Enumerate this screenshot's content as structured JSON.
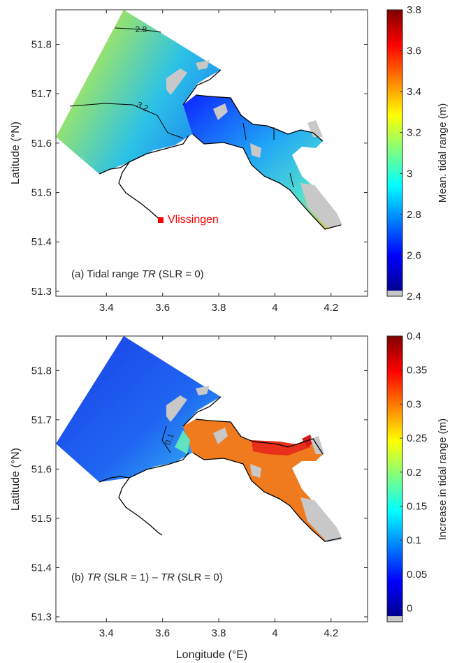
{
  "chart_data": [
    {
      "type": "heatmap",
      "panel_label": {
        "prefix": "(a) Tidal range ",
        "italic": "TR",
        "suffix": " (SLR = 0)"
      },
      "ylabel": "Latitude (°N)",
      "xlabel": "",
      "xlim": [
        3.22,
        4.33
      ],
      "ylim": [
        51.29,
        51.87
      ],
      "xticks": [
        "3.4",
        "3.6",
        "3.8",
        "4",
        "4.2"
      ],
      "yticks": [
        "51.3",
        "51.4",
        "51.5",
        "51.6",
        "51.7",
        "51.8"
      ],
      "colorbar": {
        "label": "Mean. tidal range (m)",
        "range": [
          2.4,
          3.8
        ],
        "ticks": [
          "2.4",
          "2.6",
          "2.8",
          "3",
          "3.2",
          "3.4",
          "3.6",
          "3.8"
        ]
      },
      "contours": [
        {
          "label": "2.8"
        },
        {
          "label": "3.2"
        }
      ],
      "annotation": {
        "label": "Vlissingen",
        "lon": 3.58,
        "lat": 51.45,
        "color": "#ff0000"
      }
    },
    {
      "type": "heatmap",
      "panel_label": {
        "part1": "(b) ",
        "italic1": "TR",
        "mid": " (SLR = 1) – ",
        "italic2": "TR",
        "suffix": " (SLR = 0)"
      },
      "ylabel": "Latitude (°N)",
      "xlabel": "Longitude (°E)",
      "xlim": [
        3.22,
        4.33
      ],
      "ylim": [
        51.29,
        51.87
      ],
      "xticks": [
        "3.4",
        "3.6",
        "3.8",
        "4",
        "4.2"
      ],
      "yticks": [
        "51.3",
        "51.4",
        "51.5",
        "51.6",
        "51.7",
        "51.8"
      ],
      "colorbar": {
        "label": "Increase in tidal range (m)",
        "range": [
          -0.02,
          0.4
        ],
        "ticks": [
          "0",
          "0.05",
          "0.1",
          "0.15",
          "0.2",
          "0.25",
          "0.3",
          "0.35",
          "0.4"
        ]
      },
      "contours": [
        {
          "label": "0.1"
        }
      ]
    }
  ],
  "colors": {
    "jet_low": "#00008f",
    "jet_high": "#800000",
    "land": "#c8c8c8",
    "annotation": "#ff0000"
  }
}
